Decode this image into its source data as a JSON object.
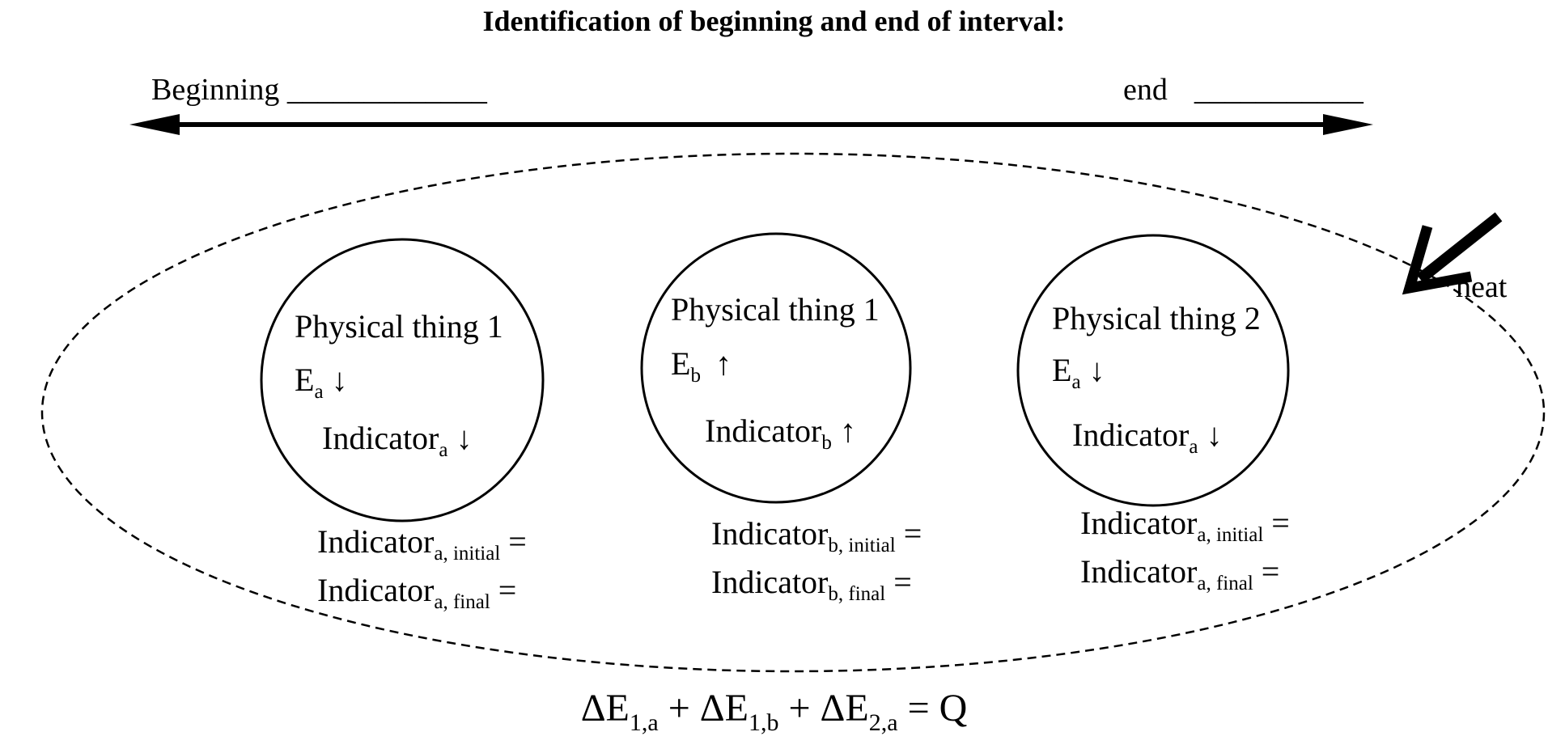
{
  "title": "Identification of beginning and end of interval:",
  "interval": {
    "beginning_label": "Beginning",
    "beginning_blank": "_____________",
    "end_label": "end",
    "end_blank": "___________"
  },
  "heat_label": "heat",
  "things": [
    {
      "name": "Physical thing 1",
      "energy": "E",
      "energy_sub": "a",
      "energy_arrow": "↓",
      "indicator": "Indicator",
      "indicator_sub": "a",
      "indicator_arrow": "↓",
      "initial_main": "Indicator",
      "initial_sub": "a, initial",
      "initial_eq": " =",
      "final_main": "Indicator",
      "final_sub": "a, final",
      "final_eq": " ="
    },
    {
      "name": "Physical thing 1",
      "energy": "E",
      "energy_sub": "b",
      "energy_arrow": "↑",
      "indicator": "Indicator",
      "indicator_sub": "b",
      "indicator_arrow": "↑",
      "initial_main": "Indicator",
      "initial_sub": "b, initial",
      "initial_eq": " =",
      "final_main": "Indicator",
      "final_sub": "b, final",
      "final_eq": " ="
    },
    {
      "name": "Physical thing 2",
      "energy": "E",
      "energy_sub": "a",
      "energy_arrow": "↓",
      "indicator": "Indicator",
      "indicator_sub": "a",
      "indicator_arrow": "↓",
      "initial_main": "Indicator",
      "initial_sub": "a, initial",
      "initial_eq": " =",
      "final_main": "Indicator",
      "final_sub": "a, final",
      "final_eq": " ="
    }
  ],
  "equation": {
    "t1": "ΔE",
    "s1": "1,a",
    "op1": " + ΔE",
    "s2": "1,b",
    "op2": " + ΔE",
    "s3": "2,a",
    "rhs": " = Q"
  }
}
